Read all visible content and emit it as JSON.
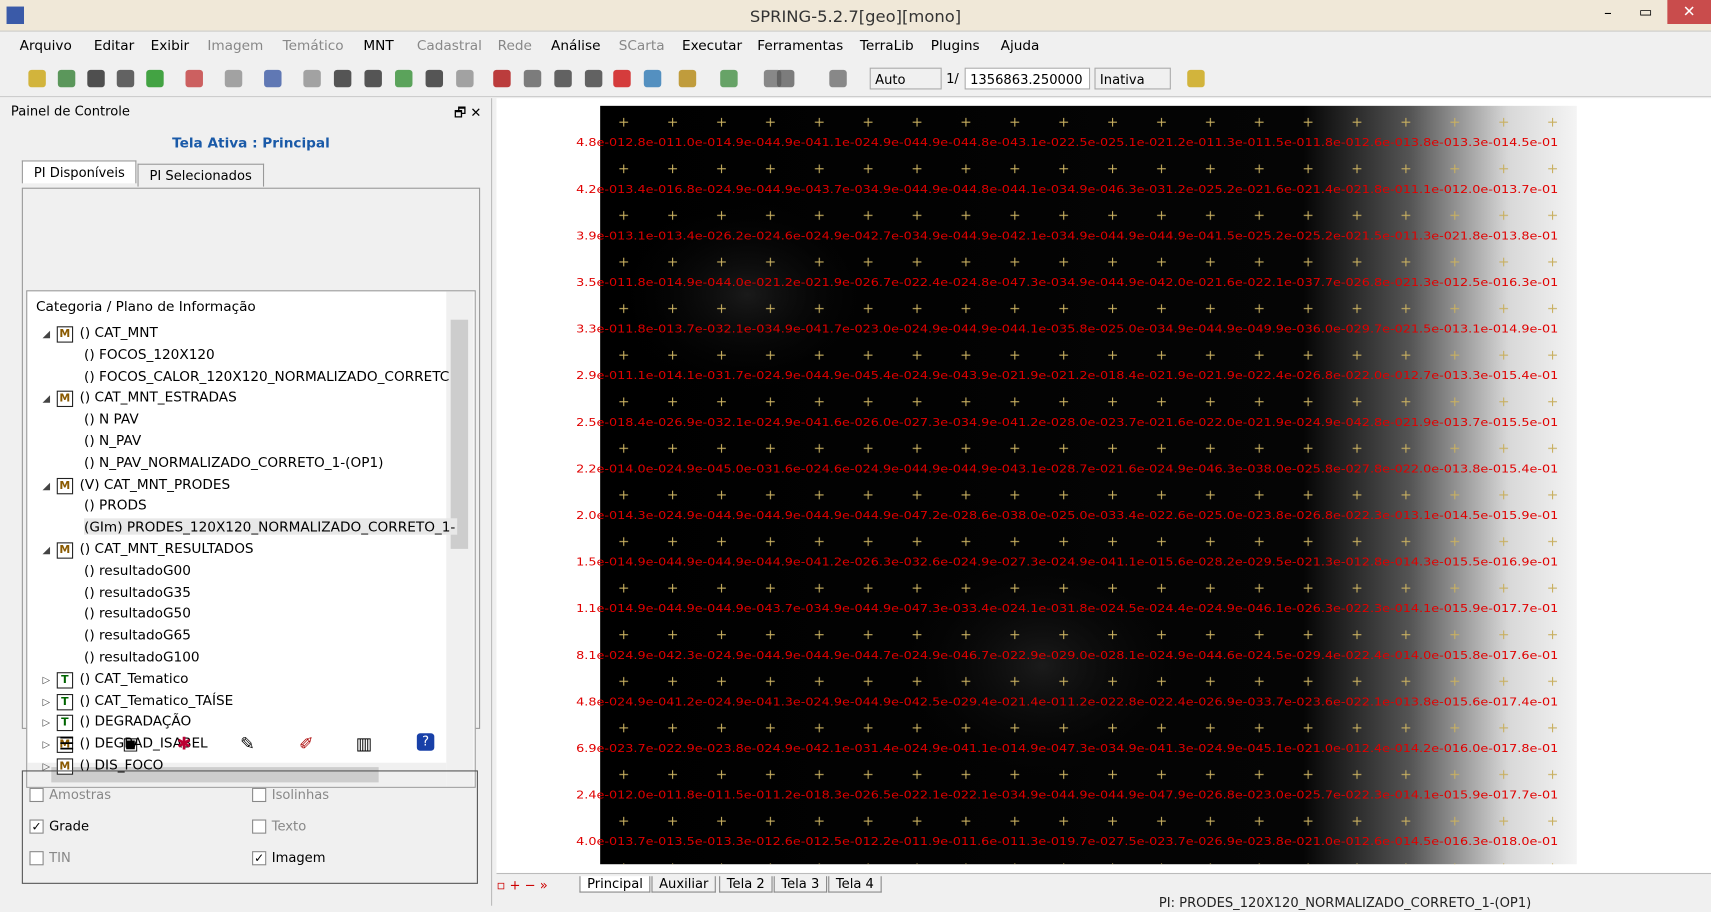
{
  "window": {
    "title": "SPRING-5.2.7[geo][mono]"
  },
  "menu": [
    "Arquivo",
    "Exibir",
    "Editar",
    "Imagem",
    "Temático",
    "MNT",
    "Cadastral",
    "Rede",
    "Análise",
    "SCarta",
    "Executar",
    "Ferramentas",
    "TerraLib",
    "Plugins",
    "Ajuda"
  ],
  "toolbar": {
    "mode": "Auto",
    "scale_prefix": "1/",
    "scale": "1356863.250000",
    "state": "Inativa"
  },
  "panel": {
    "title": "Painel de Controle",
    "active": "Tela Ativa : Principal",
    "tabs": [
      "PI Disponíveis",
      "PI Selecionados"
    ],
    "tree_header": "Categoria / Plano de Informação",
    "tree": [
      {
        "badge": "M",
        "label": "() CAT_MNT"
      },
      {
        "label": "() FOCOS_120X120"
      },
      {
        "label": "() FOCOS_CALOR_120X120_NORMALIZADO_CORRETC"
      },
      {
        "badge": "M",
        "label": "() CAT_MNT_ESTRADAS"
      },
      {
        "label": "() N PAV"
      },
      {
        "label": "() N_PAV"
      },
      {
        "label": "() N_PAV_NORMALIZADO_CORRETO_1-(OP1)"
      },
      {
        "badge": "M",
        "label": "(V) CAT_MNT_PRODES"
      },
      {
        "label": "() PRODS"
      },
      {
        "label": "(GIm) PRODES_120X120_NORMALIZADO_CORRETO_1-"
      },
      {
        "badge": "M",
        "label": "() CAT_MNT_RESULTADOS"
      },
      {
        "label": "() resultadoG00"
      },
      {
        "label": "() resultadoG35"
      },
      {
        "label": "() resultadoG50"
      },
      {
        "label": "() resultadoG65"
      },
      {
        "label": "() resultadoG100"
      },
      {
        "badge": "T",
        "label": "() CAT_Tematico"
      },
      {
        "badge": "T",
        "label": "() CAT_Tematico_TAÍSE"
      },
      {
        "badge": "T",
        "label": "() DEGRADAÇÃO"
      },
      {
        "badge": "M",
        "label": "() DEGRAD_ISABEL"
      },
      {
        "badge": "M",
        "label": "() DIS_FOCO"
      }
    ],
    "options": [
      {
        "label": "Amostras",
        "checked": false
      },
      {
        "label": "Isolinhas",
        "checked": false
      },
      {
        "label": "Grade",
        "checked": true
      },
      {
        "label": "Texto",
        "checked": false
      },
      {
        "label": "TIN",
        "checked": false
      },
      {
        "label": "Imagem",
        "checked": true
      }
    ]
  },
  "map": {
    "grid_rows": [
      "4.8e-012.8e-011.0e-014.9e-044.9e-041.1e-024.9e-044.9e-044.8e-043.1e-022.5e-025.1e-021.2e-011.3e-011.5e-011.8e-012.6e-013.8e-013.3e-014.5e-01",
      "4.2e-013.4e-016.8e-024.9e-044.9e-043.7e-034.9e-044.9e-044.8e-044.1e-034.9e-046.3e-031.2e-025.2e-021.6e-021.4e-021.8e-011.1e-012.0e-013.7e-01",
      "3.9e-013.1e-013.4e-026.2e-024.6e-024.9e-042.7e-034.9e-044.9e-042.1e-034.9e-044.9e-044.9e-041.5e-025.2e-025.2e-021.5e-011.3e-021.8e-013.8e-01",
      "3.5e-011.8e-014.9e-044.0e-021.2e-021.9e-026.7e-022.4e-024.8e-047.3e-034.9e-044.9e-042.0e-021.6e-022.1e-037.7e-026.8e-021.3e-012.5e-016.3e-01",
      "3.3e-011.8e-013.7e-032.1e-034.9e-041.7e-023.0e-024.9e-044.9e-044.1e-035.8e-025.0e-034.9e-044.9e-049.9e-036.0e-029.7e-021.5e-013.1e-014.9e-01",
      "2.9e-011.1e-014.1e-031.7e-024.9e-044.9e-045.4e-024.9e-043.9e-021.9e-021.2e-018.4e-021.9e-021.9e-022.4e-026.8e-022.0e-012.7e-013.3e-015.4e-01",
      "2.5e-018.4e-026.9e-032.1e-024.9e-041.6e-026.0e-027.3e-034.9e-041.2e-028.0e-023.7e-021.6e-022.0e-021.9e-024.9e-042.8e-021.9e-013.7e-015.5e-01",
      "2.2e-014.0e-024.9e-045.0e-031.6e-024.6e-024.9e-044.9e-044.9e-043.1e-028.7e-021.6e-024.9e-046.3e-038.0e-025.8e-027.8e-022.0e-013.8e-015.4e-01",
      "2.0e-014.3e-024.9e-044.9e-044.9e-044.9e-044.9e-047.2e-028.6e-038.0e-025.0e-033.4e-022.6e-025.0e-023.8e-026.8e-022.3e-013.1e-014.5e-015.9e-01",
      "1.5e-014.9e-044.9e-044.9e-044.9e-041.2e-026.3e-032.6e-024.9e-027.3e-024.9e-041.1e-015.6e-028.2e-029.5e-021.3e-012.8e-014.3e-015.5e-016.9e-01",
      "1.1e-014.9e-044.9e-044.9e-043.7e-034.9e-044.9e-047.3e-033.4e-024.1e-031.8e-024.5e-024.4e-024.9e-046.1e-026.3e-022.3e-014.1e-015.9e-017.7e-01",
      "8.1e-024.9e-042.3e-024.9e-044.9e-044.9e-044.7e-024.9e-046.7e-022.9e-029.0e-028.1e-024.9e-044.6e-024.5e-029.4e-022.4e-014.0e-015.8e-017.6e-01",
      "4.8e-024.9e-041.2e-024.9e-041.3e-024.9e-044.9e-042.5e-029.4e-021.4e-011.2e-022.8e-022.4e-026.9e-033.7e-023.6e-022.1e-013.8e-015.6e-017.4e-01",
      "6.9e-023.7e-022.9e-023.8e-024.9e-042.1e-031.4e-024.9e-041.1e-014.9e-047.3e-034.9e-041.3e-024.9e-045.1e-021.0e-012.4e-014.2e-016.0e-017.8e-01",
      "2.4e-012.0e-011.8e-011.5e-011.2e-018.3e-026.5e-022.1e-022.1e-034.9e-044.9e-044.9e-047.9e-026.8e-023.0e-025.7e-022.3e-014.1e-015.9e-017.7e-01",
      "4.0e-013.7e-013.5e-013.3e-012.6e-012.5e-012.2e-011.9e-011.6e-011.3e-019.7e-027.5e-023.7e-026.9e-023.8e-021.0e-012.6e-014.5e-016.3e-018.0e-01"
    ],
    "tabs": [
      "Principal",
      "Auxiliar",
      "Tela 2",
      "Tela 3",
      "Tela 4"
    ]
  },
  "status": "PI: PRODES_120X120_NORMALIZADO_CORRETO_1-(OP1)"
}
